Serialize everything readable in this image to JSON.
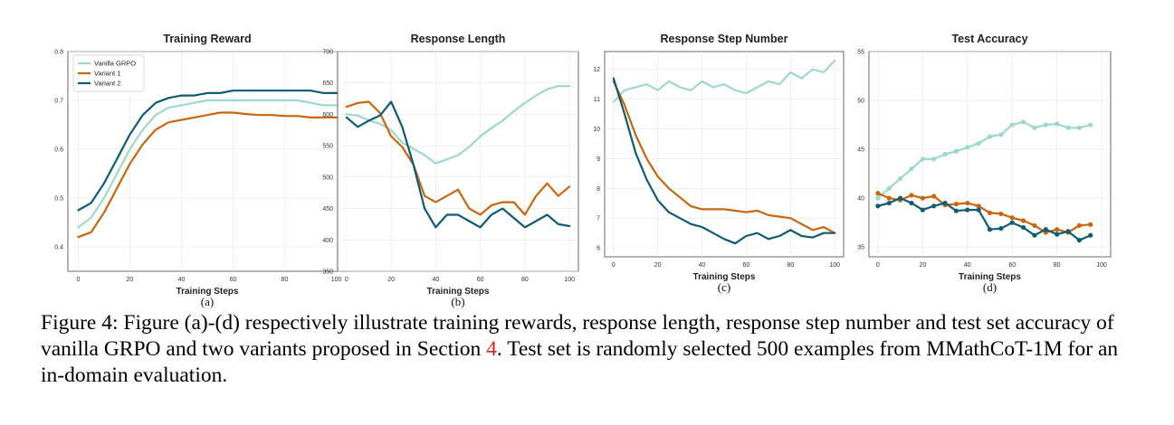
{
  "caption": {
    "label": "Figure 4:",
    "text_before_ref": "Figure (a)-(d) respectively illustrate training rewards, response length, response step number and test set accuracy of vanilla GRPO and two variants proposed in Section ",
    "ref": "4",
    "text_after_ref": ". Test set is randomly selected 500 examples from MMathCoT-1M for an in-domain evaluation."
  },
  "colors": {
    "Vanilla GRPO": "#9dd8cc",
    "Variant 1": "#c8660e",
    "Variant 2": "#0d5c74"
  },
  "chart_data": [
    {
      "id": "a",
      "type": "line",
      "title": "Training Reward",
      "xlabel": "Training Steps",
      "sublabel": "(a)",
      "xlim": [
        -4,
        104
      ],
      "ylim": [
        0.35,
        0.8
      ],
      "xticks": [
        0,
        20,
        40,
        60,
        80,
        100
      ],
      "yticks": [
        0.4,
        0.5,
        0.6,
        0.7,
        0.8
      ],
      "legend": {
        "location": "top-left",
        "entries": [
          "Vanilla GRPO",
          "Variant 1",
          "Variant 2"
        ]
      },
      "series": [
        {
          "name": "Vanilla GRPO",
          "x": [
            0,
            5,
            10,
            15,
            20,
            25,
            30,
            35,
            40,
            45,
            50,
            55,
            60,
            65,
            70,
            75,
            80,
            85,
            90,
            95,
            100
          ],
          "values": [
            0.44,
            0.46,
            0.5,
            0.55,
            0.6,
            0.64,
            0.67,
            0.685,
            0.69,
            0.695,
            0.7,
            0.7,
            0.7,
            0.7,
            0.7,
            0.7,
            0.7,
            0.7,
            0.695,
            0.69,
            0.69
          ]
        },
        {
          "name": "Variant 1",
          "x": [
            0,
            5,
            10,
            15,
            20,
            25,
            30,
            35,
            40,
            45,
            50,
            55,
            60,
            65,
            70,
            75,
            80,
            85,
            90,
            95,
            100
          ],
          "values": [
            0.42,
            0.43,
            0.47,
            0.52,
            0.57,
            0.61,
            0.64,
            0.655,
            0.66,
            0.665,
            0.67,
            0.675,
            0.675,
            0.672,
            0.67,
            0.67,
            0.668,
            0.668,
            0.665,
            0.665,
            0.665
          ]
        },
        {
          "name": "Variant 2",
          "x": [
            0,
            5,
            10,
            15,
            20,
            25,
            30,
            35,
            40,
            45,
            50,
            55,
            60,
            65,
            70,
            75,
            80,
            85,
            90,
            95,
            100
          ],
          "values": [
            0.475,
            0.49,
            0.53,
            0.58,
            0.63,
            0.67,
            0.695,
            0.705,
            0.71,
            0.71,
            0.715,
            0.715,
            0.72,
            0.72,
            0.72,
            0.72,
            0.72,
            0.72,
            0.72,
            0.715,
            0.715
          ]
        }
      ]
    },
    {
      "id": "b",
      "type": "line",
      "title": "Response Length",
      "xlabel": "Training Steps",
      "sublabel": "(b)",
      "xlim": [
        -4,
        104
      ],
      "ylim": [
        350,
        700
      ],
      "xticks": [
        0,
        20,
        40,
        60,
        80,
        100
      ],
      "yticks": [
        350,
        400,
        450,
        500,
        550,
        600,
        650,
        700
      ],
      "series": [
        {
          "name": "Vanilla GRPO",
          "x": [
            0,
            5,
            10,
            15,
            20,
            25,
            30,
            35,
            40,
            45,
            50,
            55,
            60,
            65,
            70,
            75,
            80,
            85,
            90,
            95,
            100
          ],
          "values": [
            600,
            598,
            590,
            585,
            575,
            555,
            545,
            535,
            522,
            528,
            535,
            548,
            565,
            578,
            590,
            605,
            618,
            630,
            640,
            645,
            645
          ]
        },
        {
          "name": "Variant 1",
          "x": [
            0,
            5,
            10,
            15,
            20,
            25,
            30,
            35,
            40,
            45,
            50,
            55,
            60,
            65,
            70,
            75,
            80,
            85,
            90,
            95,
            100
          ],
          "values": [
            612,
            618,
            620,
            602,
            565,
            548,
            520,
            470,
            460,
            470,
            480,
            450,
            440,
            455,
            460,
            460,
            440,
            470,
            490,
            470,
            485
          ]
        },
        {
          "name": "Variant 2",
          "x": [
            0,
            5,
            10,
            15,
            20,
            25,
            30,
            35,
            40,
            45,
            50,
            55,
            60,
            65,
            70,
            75,
            80,
            85,
            90,
            95,
            100
          ],
          "values": [
            595,
            580,
            590,
            598,
            620,
            580,
            520,
            450,
            420,
            440,
            440,
            430,
            420,
            440,
            450,
            435,
            420,
            430,
            440,
            425,
            422
          ]
        }
      ]
    },
    {
      "id": "c",
      "type": "line",
      "title": "Response Step Number",
      "xlabel": "Training Steps",
      "sublabel": "(c)",
      "xlim": [
        -4,
        104
      ],
      "ylim": [
        5.7,
        12.6
      ],
      "xticks": [
        0,
        20,
        40,
        60,
        80,
        100
      ],
      "yticks": [
        6,
        7,
        8,
        9,
        10,
        11,
        12
      ],
      "series": [
        {
          "name": "Vanilla GRPO",
          "x": [
            0,
            5,
            10,
            15,
            20,
            25,
            30,
            35,
            40,
            45,
            50,
            55,
            60,
            65,
            70,
            75,
            80,
            85,
            90,
            95,
            100
          ],
          "values": [
            10.9,
            11.3,
            11.4,
            11.5,
            11.3,
            11.6,
            11.4,
            11.3,
            11.6,
            11.4,
            11.5,
            11.3,
            11.2,
            11.4,
            11.6,
            11.5,
            11.9,
            11.7,
            12.0,
            11.9,
            12.3
          ]
        },
        {
          "name": "Variant 1",
          "x": [
            0,
            5,
            10,
            15,
            20,
            25,
            30,
            35,
            40,
            45,
            50,
            55,
            60,
            65,
            70,
            75,
            80,
            85,
            90,
            95,
            100
          ],
          "values": [
            11.6,
            10.8,
            9.8,
            9.0,
            8.4,
            8.0,
            7.7,
            7.4,
            7.3,
            7.3,
            7.3,
            7.25,
            7.2,
            7.25,
            7.1,
            7.05,
            7.0,
            6.8,
            6.6,
            6.7,
            6.5
          ]
        },
        {
          "name": "Variant 2",
          "x": [
            0,
            5,
            10,
            15,
            20,
            25,
            30,
            35,
            40,
            45,
            50,
            55,
            60,
            65,
            70,
            75,
            80,
            85,
            90,
            95,
            100
          ],
          "values": [
            11.7,
            10.5,
            9.2,
            8.3,
            7.6,
            7.2,
            7.0,
            6.8,
            6.7,
            6.5,
            6.3,
            6.15,
            6.4,
            6.5,
            6.3,
            6.4,
            6.6,
            6.4,
            6.35,
            6.5,
            6.5
          ]
        }
      ]
    },
    {
      "id": "d",
      "type": "line",
      "title": "Test Accuracy",
      "xlabel": "Training Steps",
      "sublabel": "(d)",
      "xlim": [
        -4,
        104
      ],
      "ylim": [
        34,
        55
      ],
      "xticks": [
        0,
        20,
        40,
        60,
        80,
        100
      ],
      "yticks": [
        35,
        40,
        45,
        50,
        55
      ],
      "markers": true,
      "series": [
        {
          "name": "Vanilla GRPO",
          "x": [
            0,
            5,
            10,
            15,
            20,
            25,
            30,
            35,
            40,
            45,
            50,
            55,
            60,
            65,
            70,
            75,
            80,
            85,
            90,
            95
          ],
          "values": [
            40.0,
            41.0,
            42.0,
            43.0,
            44.0,
            44.0,
            44.5,
            44.8,
            45.2,
            45.6,
            46.3,
            46.5,
            47.5,
            47.8,
            47.2,
            47.5,
            47.6,
            47.2,
            47.2,
            47.5
          ]
        },
        {
          "name": "Variant 1",
          "x": [
            0,
            5,
            10,
            15,
            20,
            25,
            30,
            35,
            40,
            45,
            50,
            55,
            60,
            65,
            70,
            75,
            80,
            85,
            90,
            95
          ],
          "values": [
            40.5,
            40.0,
            39.8,
            40.3,
            40.0,
            40.2,
            39.3,
            39.4,
            39.5,
            39.2,
            38.5,
            38.4,
            38.0,
            37.7,
            37.2,
            36.5,
            36.8,
            36.5,
            37.2,
            37.3
          ]
        },
        {
          "name": "Variant 2",
          "x": [
            0,
            5,
            10,
            15,
            20,
            25,
            30,
            35,
            40,
            45,
            50,
            55,
            60,
            65,
            70,
            75,
            80,
            85,
            90,
            95
          ],
          "values": [
            39.2,
            39.5,
            40.0,
            39.5,
            38.8,
            39.2,
            39.5,
            38.7,
            38.8,
            38.8,
            36.8,
            36.9,
            37.5,
            37.0,
            36.2,
            36.8,
            36.3,
            36.6,
            35.7,
            36.2
          ]
        }
      ]
    }
  ]
}
